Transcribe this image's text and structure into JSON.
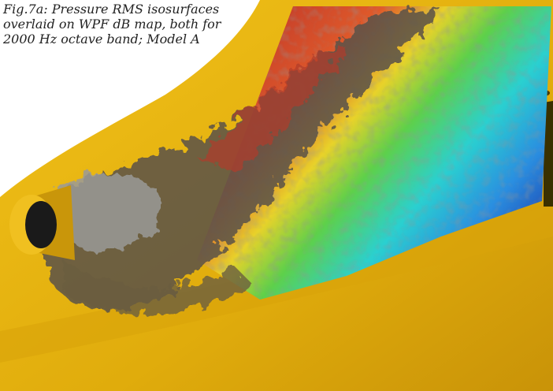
{
  "caption": {
    "lines": [
      "Fig.7a: Pressure RMS isosurfaces",
      "overlaid on WPF dB map, both for",
      "2000 Hz octave band; Model A"
    ]
  }
}
